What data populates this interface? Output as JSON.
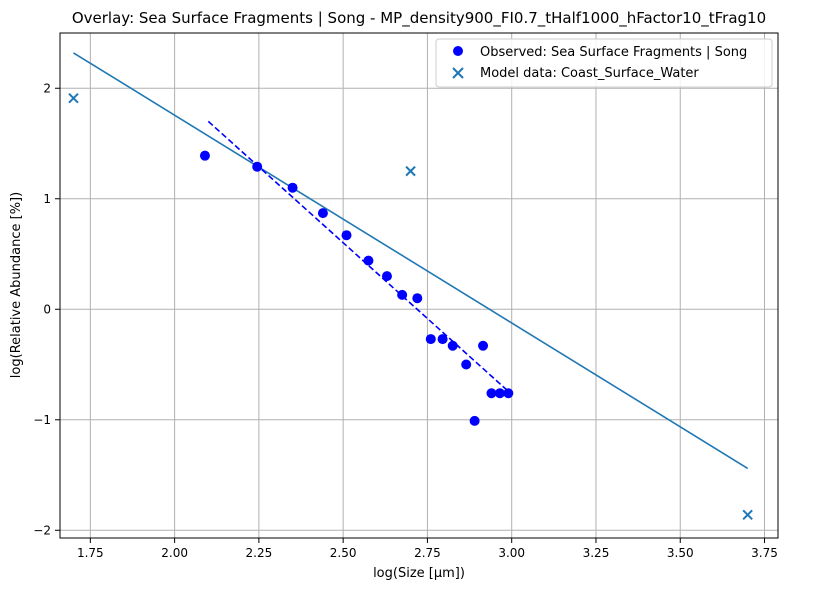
{
  "chart_data": {
    "type": "scatter",
    "title": "Overlay: Sea Surface Fragments | Song - MP_density900_FI0.7_tHalf1000_hFactor10_tFrag10",
    "xlabel": "log(Size [μm])",
    "ylabel": "log(Relative Abundance [%])",
    "xlim": [
      1.66,
      3.79
    ],
    "ylim": [
      -2.07,
      2.5
    ],
    "x_ticks": [
      1.75,
      2.0,
      2.25,
      2.5,
      2.75,
      3.0,
      3.25,
      3.5,
      3.75
    ],
    "x_tick_labels": [
      "1.75",
      "2.00",
      "2.25",
      "2.50",
      "2.75",
      "3.00",
      "3.25",
      "3.50",
      "3.75"
    ],
    "y_ticks": [
      -2,
      -1,
      0,
      1,
      2
    ],
    "y_tick_labels": [
      "−2",
      "−1",
      "0",
      "1",
      "2"
    ],
    "grid": true,
    "legend_position": "top-right",
    "colors": {
      "observed": "#0000ff",
      "model": "#1f77b4",
      "fit_line": "#1f77b4",
      "obs_fit": "#0000ff"
    },
    "series": [
      {
        "name": "Observed: Sea Surface Fragments | Song",
        "kind": "scatter",
        "marker": "circle",
        "x": [
          2.09,
          2.245,
          2.35,
          2.44,
          2.51,
          2.575,
          2.63,
          2.675,
          2.72,
          2.76,
          2.795,
          2.825,
          2.865,
          2.89,
          2.915,
          2.94,
          2.965,
          2.99
        ],
        "y": [
          1.39,
          1.29,
          1.1,
          0.87,
          0.67,
          0.44,
          0.3,
          0.13,
          0.1,
          -0.27,
          -0.27,
          -0.33,
          -0.5,
          -1.01,
          -0.33,
          -0.76,
          -0.76,
          -0.76
        ]
      },
      {
        "name": "Model data: Coast_Surface_Water",
        "kind": "scatter",
        "marker": "x",
        "x": [
          1.7,
          2.7,
          3.7
        ],
        "y": [
          1.91,
          1.25,
          -1.86
        ]
      }
    ],
    "lines": [
      {
        "kind": "solid-fit",
        "x": [
          1.7,
          3.7
        ],
        "y": [
          2.32,
          -1.44
        ]
      },
      {
        "kind": "dashed-fit",
        "x": [
          2.1,
          3.0
        ],
        "y": [
          1.7,
          -0.77
        ]
      }
    ]
  }
}
